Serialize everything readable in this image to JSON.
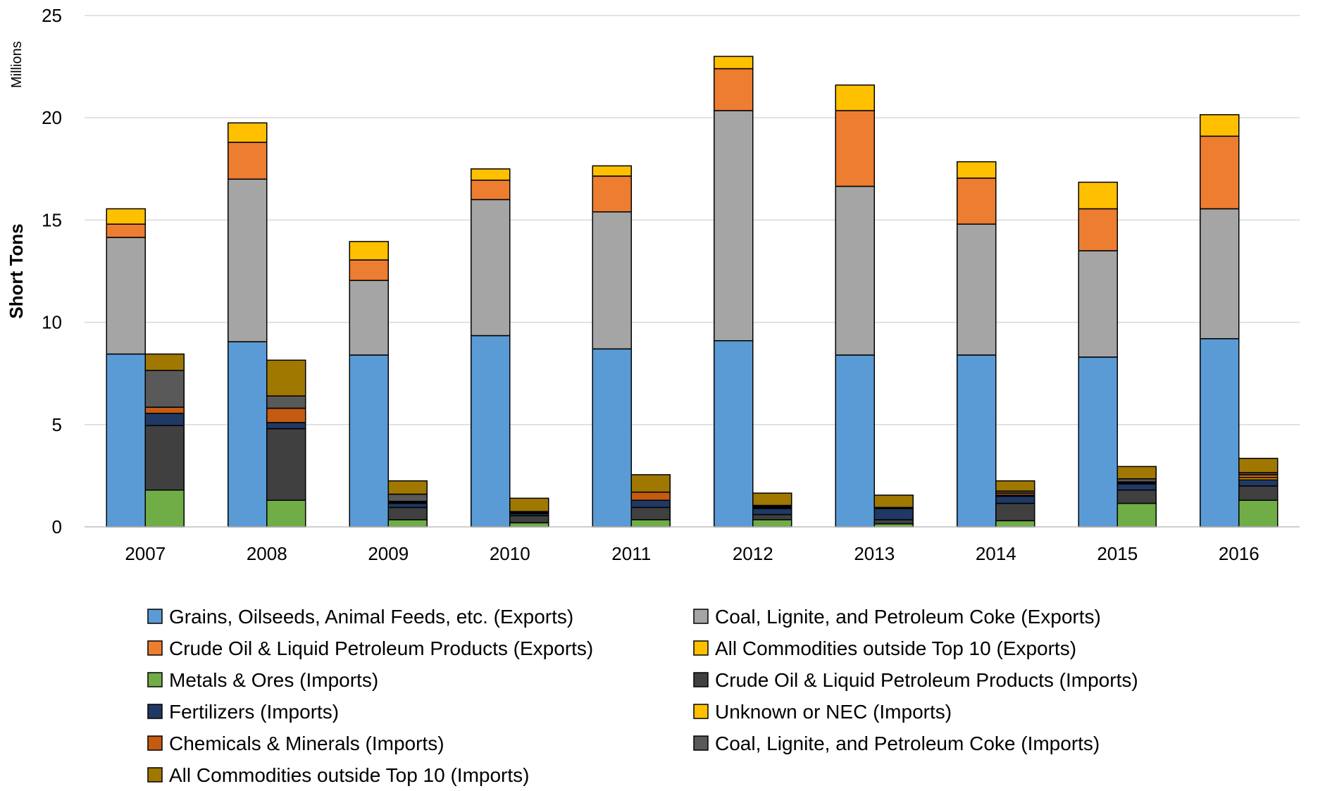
{
  "chart_data": {
    "type": "bar",
    "stacked": true,
    "units_label": "Millions",
    "ylabel": "Short Tons",
    "xlabel": "",
    "title": "",
    "ylim": [
      0,
      25
    ],
    "yticks": [
      0,
      5,
      10,
      15,
      20,
      25
    ],
    "grid": true,
    "legend_position": "bottom",
    "categories": [
      "2007",
      "2008",
      "2009",
      "2010",
      "2011",
      "2012",
      "2013",
      "2014",
      "2015",
      "2016"
    ],
    "groups": [
      {
        "name": "Exports",
        "series": [
          {
            "name": "Grains, Oilseeds, Animal Feeds, etc. (Exports)",
            "color": "#5B9BD5",
            "values": [
              8.45,
              9.05,
              8.4,
              9.35,
              8.7,
              9.1,
              8.4,
              8.4,
              8.3,
              9.2
            ]
          },
          {
            "name": "Coal, Lignite, and Petroleum Coke (Exports)",
            "color": "#A5A5A5",
            "values": [
              5.7,
              7.95,
              3.65,
              6.65,
              6.7,
              11.25,
              8.25,
              6.4,
              5.2,
              6.35
            ]
          },
          {
            "name": "Crude Oil & Liquid Petroleum Products (Exports)",
            "color": "#ED7D31",
            "values": [
              0.65,
              1.8,
              1.0,
              0.95,
              1.75,
              2.05,
              3.7,
              2.25,
              2.05,
              3.55
            ]
          },
          {
            "name": "All Commodities outside Top 10 (Exports)",
            "color": "#FFC000",
            "values": [
              0.75,
              0.95,
              0.9,
              0.55,
              0.5,
              0.6,
              1.25,
              0.8,
              1.3,
              1.05
            ]
          }
        ]
      },
      {
        "name": "Imports",
        "series": [
          {
            "name": "Metals & Ores (Imports)",
            "color": "#70AD47",
            "values": [
              1.8,
              1.3,
              0.35,
              0.2,
              0.35,
              0.35,
              0.15,
              0.3,
              1.15,
              1.3
            ]
          },
          {
            "name": "Crude Oil & Liquid Petroleum Products (Imports)",
            "color": "#404040",
            "values": [
              3.15,
              3.5,
              0.6,
              0.35,
              0.6,
              0.25,
              0.2,
              0.85,
              0.65,
              0.7
            ]
          },
          {
            "name": "Fertilizers (Imports)",
            "color": "#203864",
            "values": [
              0.6,
              0.3,
              0.2,
              0.1,
              0.35,
              0.3,
              0.55,
              0.35,
              0.3,
              0.3
            ]
          },
          {
            "name": "Unknown or NEC (Imports)",
            "color": "#FFC000",
            "values": [
              0.0,
              0.0,
              0.05,
              0.0,
              0.0,
              0.05,
              0.0,
              0.05,
              0.05,
              0.1
            ]
          },
          {
            "name": "Chemicals & Minerals (Imports)",
            "color": "#C55A11",
            "values": [
              0.3,
              0.7,
              0.05,
              0.05,
              0.4,
              0.05,
              0.0,
              0.1,
              0.05,
              0.15
            ]
          },
          {
            "name": "Coal, Lignite, and Petroleum Coke (Imports)",
            "color": "#595959",
            "values": [
              1.8,
              0.6,
              0.35,
              0.05,
              0.0,
              0.05,
              0.05,
              0.1,
              0.15,
              0.1
            ]
          },
          {
            "name": "All Commodities outside Top 10 (Imports)",
            "color": "#A07800",
            "values": [
              0.8,
              1.75,
              0.65,
              0.65,
              0.85,
              0.6,
              0.6,
              0.5,
              0.6,
              0.7
            ]
          }
        ]
      }
    ],
    "legend_order": [
      "Grains, Oilseeds, Animal Feeds, etc. (Exports)",
      "Coal, Lignite, and Petroleum Coke (Exports)",
      "Crude Oil & Liquid Petroleum Products (Exports)",
      "All Commodities outside Top 10 (Exports)",
      "Metals & Ores (Imports)",
      "Crude Oil & Liquid Petroleum Products (Imports)",
      "Fertilizers (Imports)",
      "Unknown or NEC (Imports)",
      "Chemicals & Minerals (Imports)",
      "Coal, Lignite, and Petroleum Coke (Imports)",
      "All Commodities outside Top 10 (Imports)"
    ]
  }
}
